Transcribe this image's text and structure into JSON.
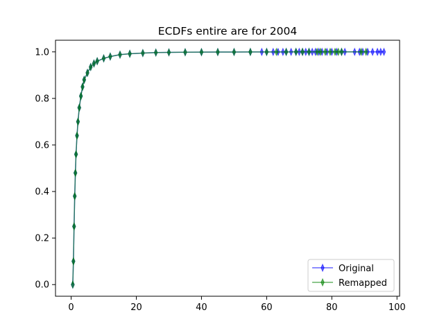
{
  "chart_data": {
    "type": "line",
    "title": "ECDFs entire are for 2004",
    "xlabel": "",
    "ylabel": "",
    "xlim": [
      -4.8,
      100.8
    ],
    "ylim": [
      -0.05,
      1.05
    ],
    "xticks": [
      0,
      20,
      40,
      60,
      80,
      100
    ],
    "yticks": [
      0.0,
      0.2,
      0.4,
      0.6,
      0.8,
      1.0
    ],
    "xtick_labels": [
      "0",
      "20",
      "40",
      "60",
      "80",
      "100"
    ],
    "ytick_labels": [
      "0.0",
      "0.2",
      "0.4",
      "0.6",
      "0.8",
      "1.0"
    ],
    "grid": false,
    "legend_position": "lower-right",
    "series": [
      {
        "name": "Original",
        "color": "#0000ff",
        "marker": "thin-diamond",
        "x": [
          0.5,
          0.7,
          0.9,
          1.1,
          1.3,
          1.5,
          1.8,
          2.1,
          2.5,
          3.0,
          3.5,
          4.0,
          5.0,
          6.0,
          7.0,
          8.0,
          10.0,
          12.0,
          15.0,
          18.0,
          22.0,
          26.0,
          30.0,
          35.0,
          40.0,
          45.0,
          50.0,
          55.0,
          58.5,
          60.0,
          62.0,
          63.5,
          65.0,
          66.0,
          67.5,
          69.0,
          70.0,
          71.0,
          72.0,
          73.0,
          74.0,
          75.0,
          76.0,
          77.0,
          78.5,
          80.0,
          81.5,
          83.0,
          84.0,
          87.0,
          88.5,
          89.5,
          91.0,
          92.5,
          94.0,
          95.0,
          96.0
        ],
        "y": [
          0.0,
          0.1,
          0.25,
          0.38,
          0.48,
          0.56,
          0.64,
          0.7,
          0.76,
          0.81,
          0.85,
          0.88,
          0.91,
          0.935,
          0.95,
          0.96,
          0.972,
          0.98,
          0.988,
          0.992,
          0.995,
          0.997,
          0.998,
          0.9985,
          0.999,
          0.9993,
          0.9995,
          0.9997,
          0.99975,
          0.9998,
          0.99983,
          0.99985,
          0.99987,
          0.99988,
          0.9999,
          0.99991,
          0.99992,
          0.99993,
          0.99994,
          0.99995,
          0.99995,
          0.99996,
          0.99996,
          0.99997,
          0.99997,
          0.99998,
          0.99998,
          0.99998,
          0.99999,
          0.99999,
          0.99999,
          0.99999,
          1.0,
          1.0,
          1.0,
          1.0,
          1.0
        ]
      },
      {
        "name": "Remapped",
        "color": "#008000",
        "marker": "thin-diamond",
        "x": [
          0.5,
          0.7,
          0.9,
          1.1,
          1.3,
          1.5,
          1.8,
          2.1,
          2.5,
          3.0,
          3.5,
          4.0,
          5.0,
          6.0,
          7.0,
          8.0,
          10.0,
          12.0,
          15.0,
          18.0,
          22.0,
          26.0,
          30.0,
          35.0,
          40.0,
          45.0,
          50.0,
          55.0,
          60.0,
          63.0,
          66.0,
          69.0,
          71.0,
          73.0,
          75.5,
          76.5,
          78.0,
          79.5,
          81.0,
          82.0,
          83.0,
          89.0,
          90.5
        ],
        "y": [
          0.0,
          0.1,
          0.25,
          0.38,
          0.48,
          0.56,
          0.64,
          0.7,
          0.76,
          0.81,
          0.85,
          0.88,
          0.91,
          0.935,
          0.95,
          0.96,
          0.972,
          0.98,
          0.988,
          0.992,
          0.995,
          0.997,
          0.998,
          0.9985,
          0.999,
          0.9993,
          0.9995,
          0.9997,
          0.9998,
          0.99985,
          0.99988,
          0.9999,
          0.99992,
          0.99993,
          0.99995,
          0.99996,
          0.99997,
          0.99997,
          0.99998,
          0.99998,
          0.99999,
          1.0,
          1.0
        ]
      }
    ]
  }
}
